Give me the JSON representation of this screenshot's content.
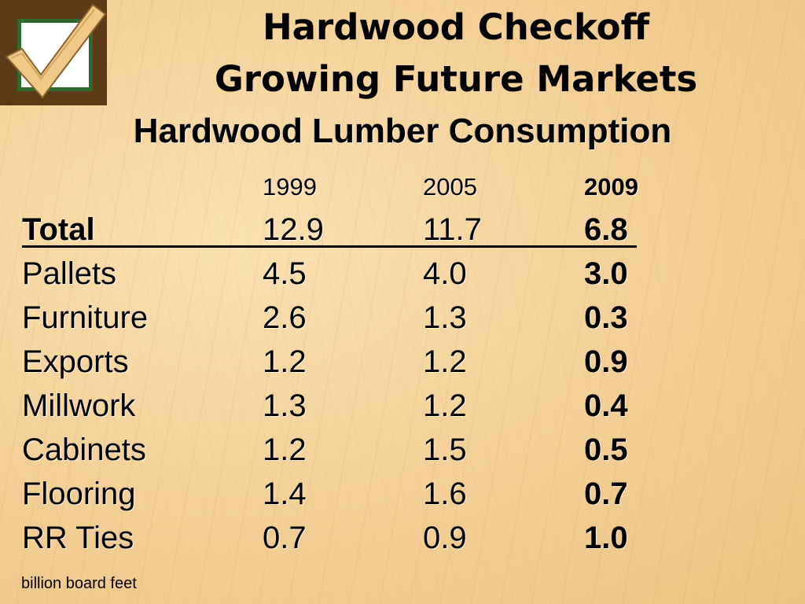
{
  "header": {
    "title_line1": "Hardwood Checkoff",
    "title_line2": "Growing Future Markets",
    "subtitle": "Hardwood Lumber Consumption"
  },
  "logo": {
    "icon": "checkmark-icon",
    "frame_color": "#2f6a2c",
    "background_color": "#5c3a17"
  },
  "table": {
    "years": [
      "1999",
      "2005",
      "2009"
    ],
    "total": {
      "label": "Total",
      "values": [
        "12.9",
        "11.7",
        "6.8"
      ]
    },
    "rows": [
      {
        "label": "Pallets",
        "values": [
          "4.5",
          "4.0",
          "3.0"
        ]
      },
      {
        "label": "Furniture",
        "values": [
          "2.6",
          "1.3",
          "0.3"
        ]
      },
      {
        "label": "Exports",
        "values": [
          "1.2",
          "1.2",
          "0.9"
        ]
      },
      {
        "label": "Millwork",
        "values": [
          "1.3",
          "1.2",
          "0.4"
        ]
      },
      {
        "label": "Cabinets",
        "values": [
          "1.2",
          "1.5",
          "0.5"
        ]
      },
      {
        "label": "Flooring",
        "values": [
          "1.4",
          "1.6",
          "0.7"
        ]
      },
      {
        "label": "RR Ties",
        "values": [
          "0.7",
          "0.9",
          "1.0"
        ]
      }
    ]
  },
  "footnote": "billion board feet"
}
